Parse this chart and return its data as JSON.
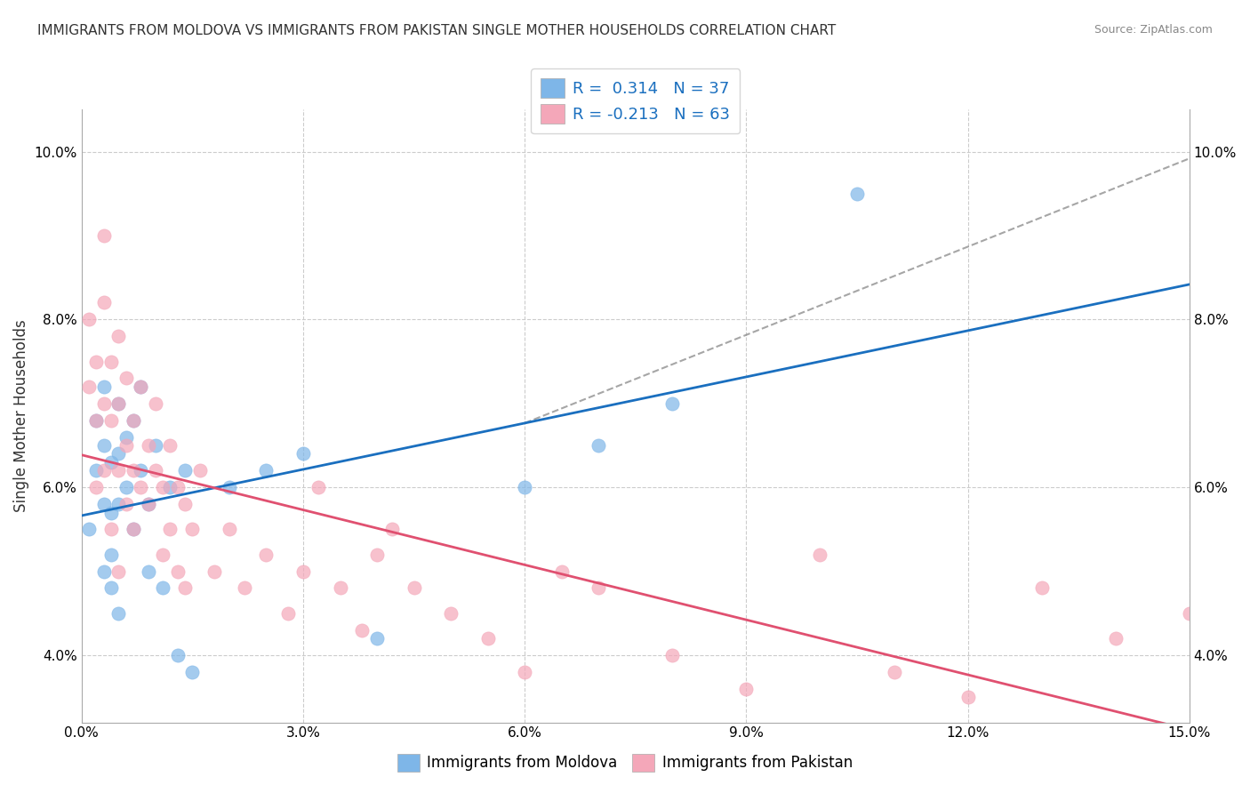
{
  "title": "IMMIGRANTS FROM MOLDOVA VS IMMIGRANTS FROM PAKISTAN SINGLE MOTHER HOUSEHOLDS CORRELATION CHART",
  "source": "Source: ZipAtlas.com",
  "xlabel_bottom": "",
  "ylabel": "Single Mother Households",
  "legend_moldova": "Immigrants from Moldova",
  "legend_pakistan": "Immigrants from Pakistan",
  "R_moldova": 0.314,
  "N_moldova": 37,
  "R_pakistan": -0.213,
  "N_pakistan": 63,
  "xlim": [
    0,
    0.15
  ],
  "ylim": [
    0.032,
    0.105
  ],
  "xticks": [
    0.0,
    0.03,
    0.06,
    0.09,
    0.12,
    0.15
  ],
  "yticks": [
    0.04,
    0.06,
    0.08,
    0.1
  ],
  "color_moldova": "#7EB6E8",
  "color_pakistan": "#F4A7B9",
  "line_color_moldova": "#1A6FBF",
  "line_color_pakistan": "#E05070",
  "background_color": "#FFFFFF",
  "moldova_x": [
    0.001,
    0.002,
    0.002,
    0.003,
    0.003,
    0.003,
    0.003,
    0.004,
    0.004,
    0.004,
    0.004,
    0.005,
    0.005,
    0.005,
    0.005,
    0.006,
    0.006,
    0.007,
    0.007,
    0.008,
    0.008,
    0.009,
    0.009,
    0.01,
    0.011,
    0.012,
    0.013,
    0.014,
    0.015,
    0.02,
    0.025,
    0.03,
    0.04,
    0.06,
    0.07,
    0.08,
    0.105
  ],
  "moldova_y": [
    0.055,
    0.068,
    0.062,
    0.072,
    0.065,
    0.058,
    0.05,
    0.063,
    0.057,
    0.052,
    0.048,
    0.07,
    0.064,
    0.058,
    0.045,
    0.066,
    0.06,
    0.068,
    0.055,
    0.072,
    0.062,
    0.058,
    0.05,
    0.065,
    0.048,
    0.06,
    0.04,
    0.062,
    0.038,
    0.06,
    0.062,
    0.064,
    0.042,
    0.06,
    0.065,
    0.07,
    0.095
  ],
  "pakistan_x": [
    0.001,
    0.001,
    0.002,
    0.002,
    0.002,
    0.003,
    0.003,
    0.003,
    0.003,
    0.004,
    0.004,
    0.004,
    0.005,
    0.005,
    0.005,
    0.005,
    0.006,
    0.006,
    0.006,
    0.007,
    0.007,
    0.007,
    0.008,
    0.008,
    0.009,
    0.009,
    0.01,
    0.01,
    0.011,
    0.011,
    0.012,
    0.012,
    0.013,
    0.013,
    0.014,
    0.014,
    0.015,
    0.016,
    0.018,
    0.02,
    0.022,
    0.025,
    0.028,
    0.03,
    0.032,
    0.035,
    0.038,
    0.04,
    0.042,
    0.045,
    0.05,
    0.055,
    0.06,
    0.065,
    0.07,
    0.08,
    0.09,
    0.1,
    0.11,
    0.12,
    0.13,
    0.14,
    0.15
  ],
  "pakistan_y": [
    0.08,
    0.072,
    0.068,
    0.075,
    0.06,
    0.09,
    0.082,
    0.07,
    0.062,
    0.075,
    0.068,
    0.055,
    0.078,
    0.07,
    0.062,
    0.05,
    0.073,
    0.065,
    0.058,
    0.068,
    0.062,
    0.055,
    0.072,
    0.06,
    0.065,
    0.058,
    0.07,
    0.062,
    0.06,
    0.052,
    0.065,
    0.055,
    0.06,
    0.05,
    0.058,
    0.048,
    0.055,
    0.062,
    0.05,
    0.055,
    0.048,
    0.052,
    0.045,
    0.05,
    0.06,
    0.048,
    0.043,
    0.052,
    0.055,
    0.048,
    0.045,
    0.042,
    0.038,
    0.05,
    0.048,
    0.04,
    0.036,
    0.052,
    0.038,
    0.035,
    0.048,
    0.042,
    0.045
  ]
}
